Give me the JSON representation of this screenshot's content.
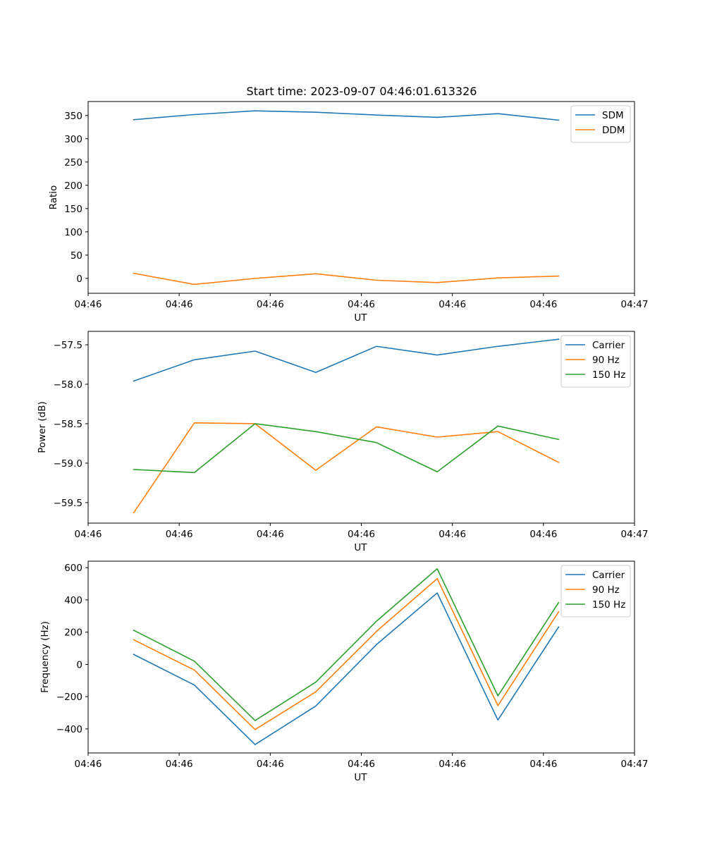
{
  "figure": {
    "title": "Start time: 2023-09-07 04:46:01.613326"
  },
  "chart_data": [
    {
      "type": "line",
      "title": "Start time: 2023-09-07 04:46:01.613326",
      "xlabel": "UT",
      "ylabel": "Ratio",
      "x": [
        0,
        1,
        2,
        3,
        4,
        5,
        6,
        7
      ],
      "xlim": [
        -0.75,
        8.25
      ],
      "xtick_positions": [
        -0.75,
        0.75,
        2.25,
        3.75,
        5.25,
        6.75,
        8.25
      ],
      "xtick_labels": [
        "04:46",
        "04:46",
        "04:46",
        "04:46",
        "04:46",
        "04:46",
        "04:47"
      ],
      "ylim": [
        -32,
        380
      ],
      "yticks": [
        0,
        50,
        100,
        150,
        200,
        250,
        300,
        350
      ],
      "ytick_labels": [
        "0",
        "50",
        "100",
        "150",
        "200",
        "250",
        "300",
        "350"
      ],
      "legend_position": "top-right",
      "grid": false,
      "series": [
        {
          "name": "SDM",
          "color": "#1f77b4",
          "values": [
            341,
            352,
            360,
            357,
            351,
            346,
            354,
            340
          ]
        },
        {
          "name": "DDM",
          "color": "#ff7f0e",
          "values": [
            11,
            -13,
            0,
            10,
            -4,
            -9,
            1,
            5
          ]
        }
      ]
    },
    {
      "type": "line",
      "title": "",
      "xlabel": "UT",
      "ylabel": "Power (dB)",
      "x": [
        0,
        1,
        2,
        3,
        4,
        5,
        6,
        7
      ],
      "xlim": [
        -0.75,
        8.25
      ],
      "xtick_positions": [
        -0.75,
        0.75,
        2.25,
        3.75,
        5.25,
        6.75,
        8.25
      ],
      "xtick_labels": [
        "04:46",
        "04:46",
        "04:46",
        "04:46",
        "04:46",
        "04:46",
        "04:47"
      ],
      "ylim": [
        -59.76,
        -57.33
      ],
      "yticks": [
        -59.5,
        -59.0,
        -58.5,
        -58.0,
        -57.5
      ],
      "ytick_labels": [
        "−59.5",
        "−59.0",
        "−58.5",
        "−58.0",
        "−57.5"
      ],
      "legend_position": "top-right",
      "grid": false,
      "series": [
        {
          "name": "Carrier",
          "color": "#1f77b4",
          "values": [
            -57.96,
            -57.69,
            -57.58,
            -57.85,
            -57.52,
            -57.63,
            -57.52,
            -57.43
          ]
        },
        {
          "name": "90 Hz",
          "color": "#ff7f0e",
          "values": [
            -59.63,
            -58.49,
            -58.5,
            -59.09,
            -58.54,
            -58.67,
            -58.6,
            -58.99
          ]
        },
        {
          "name": "150 Hz",
          "color": "#2ca02c",
          "values": [
            -59.08,
            -59.12,
            -58.5,
            -58.6,
            -58.74,
            -59.11,
            -58.53,
            -58.7
          ]
        }
      ]
    },
    {
      "type": "line",
      "title": "",
      "xlabel": "UT",
      "ylabel": "Frequency (Hz)",
      "x": [
        0,
        1,
        2,
        3,
        4,
        5,
        6,
        7
      ],
      "xlim": [
        -0.75,
        8.25
      ],
      "xtick_positions": [
        -0.75,
        0.75,
        2.25,
        3.75,
        5.25,
        6.75,
        8.25
      ],
      "xtick_labels": [
        "04:46",
        "04:46",
        "04:46",
        "04:46",
        "04:46",
        "04:46",
        "04:47"
      ],
      "ylim": [
        -549,
        640
      ],
      "yticks": [
        -400,
        -200,
        0,
        200,
        400,
        600
      ],
      "ytick_labels": [
        "−400",
        "−200",
        "0",
        "200",
        "400",
        "600"
      ],
      "legend_position": "top-right",
      "grid": false,
      "series": [
        {
          "name": "Carrier",
          "color": "#1f77b4",
          "values": [
            62,
            -128,
            -497,
            -258,
            123,
            443,
            -345,
            232
          ]
        },
        {
          "name": "90 Hz",
          "color": "#ff7f0e",
          "values": [
            153,
            -35,
            -404,
            -170,
            205,
            532,
            -256,
            326
          ]
        },
        {
          "name": "150 Hz",
          "color": "#2ca02c",
          "values": [
            212,
            20,
            -348,
            -110,
            268,
            593,
            -195,
            383
          ]
        }
      ]
    }
  ]
}
